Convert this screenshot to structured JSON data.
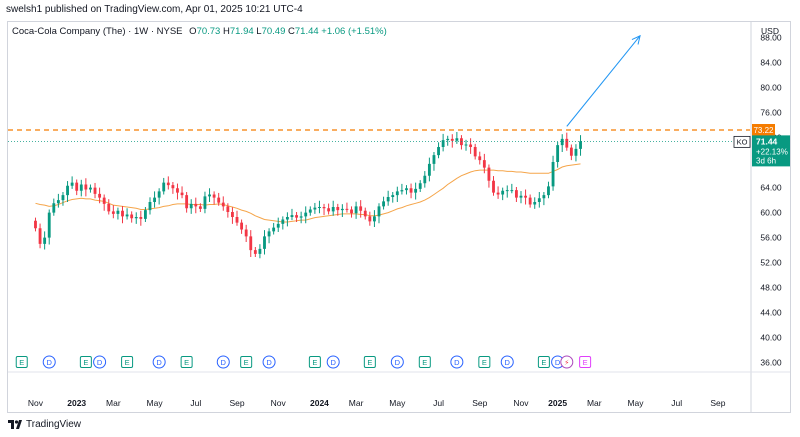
{
  "header": {
    "published": "swelsh1 published on TradingView.com, Apr 01, 2025 10:21 UTC-4"
  },
  "legend": {
    "symbol_desc": "Coca-Cola Company (The) · 1W · NYSE",
    "o_label": "O",
    "o": "70.73",
    "h_label": "H",
    "h": "71.94",
    "l_label": "L",
    "l": "70.49",
    "c_label": "C",
    "c": "71.44",
    "change": "+1.06 (+1.51%)"
  },
  "footer": {
    "brand": "TradingView"
  },
  "colors": {
    "up": "#089981",
    "down": "#f23645",
    "ma": "#f5a54a",
    "resistance": "#f57c00",
    "arrow": "#2196f3",
    "price_tag": "#089981"
  },
  "chart_data": {
    "type": "candlestick",
    "currency": "USD",
    "y_ticks": [
      "88.00",
      "84.00",
      "80.00",
      "76.00",
      "72.00",
      "68.00",
      "64.00",
      "60.00",
      "56.00",
      "52.00",
      "48.00",
      "44.00",
      "40.00",
      "36.00"
    ],
    "x_ticks": [
      "Nov",
      "2023",
      "Mar",
      "May",
      "Jul",
      "Sep",
      "Nov",
      "2024",
      "Mar",
      "May",
      "Jul",
      "Sep",
      "Nov",
      "2025",
      "Mar",
      "May",
      "Jul",
      "Sep"
    ],
    "x_tick_week_index": [
      0,
      9,
      17,
      26,
      35,
      44,
      53,
      62,
      70,
      79,
      88,
      97,
      106,
      114,
      122,
      131,
      140,
      149
    ],
    "ylim": [
      34.5,
      90.5
    ],
    "xlim": [
      -6,
      156
    ],
    "resistance_level": 73.22,
    "resistance_label": "73.22",
    "price_label": {
      "symbol": "KO",
      "price": "71.44",
      "change": "+22.13%",
      "countdown": "3d 6h"
    },
    "closes": [
      57.5,
      55.0,
      56.0,
      60.0,
      61.5,
      62.0,
      62.8,
      64.3,
      64.8,
      63.5,
      64.5,
      63.7,
      64.0,
      63.0,
      62.4,
      61.4,
      60.2,
      59.8,
      60.3,
      59.4,
      59.7,
      59.1,
      59.3,
      59.0,
      60.4,
      61.7,
      62.4,
      63.4,
      64.8,
      64.4,
      63.9,
      63.2,
      62.8,
      60.7,
      61.4,
      61.0,
      60.6,
      62.6,
      62.9,
      62.4,
      61.6,
      61.0,
      60.1,
      59.3,
      58.4,
      57.3,
      56.2,
      54.0,
      53.4,
      54.2,
      56.2,
      57.0,
      57.6,
      58.2,
      58.9,
      59.3,
      59.6,
      59.2,
      59.4,
      60.0,
      60.5,
      60.8,
      60.9,
      60.7,
      60.2,
      60.9,
      60.4,
      60.6,
      60.5,
      59.9,
      61.0,
      60.3,
      59.4,
      58.6,
      59.4,
      61.0,
      61.8,
      62.5,
      62.8,
      63.4,
      63.6,
      63.9,
      63.2,
      63.8,
      64.7,
      65.9,
      67.8,
      69.2,
      70.5,
      71.6,
      71.8,
      71.5,
      71.9,
      70.8,
      70.9,
      70.5,
      69.0,
      68.4,
      67.2,
      65.1,
      63.2,
      62.9,
      63.5,
      63.6,
      63.6,
      62.4,
      62.7,
      62.4,
      61.3,
      61.7,
      62.3,
      62.8,
      64.2,
      68.1,
      70.8,
      71.8,
      70.4,
      69.1,
      70.2,
      71.4
    ],
    "ma_values": [
      61.5,
      61.3,
      61.2,
      61.0,
      61.1,
      61.3,
      61.6,
      61.9,
      62.1,
      62.2,
      62.3,
      62.2,
      62.2,
      62.0,
      61.9,
      61.8,
      61.5,
      61.2,
      61.1,
      61.0,
      60.9,
      60.8,
      60.7,
      60.5,
      60.5,
      60.6,
      60.7,
      60.8,
      61.0,
      61.1,
      61.3,
      61.4,
      61.4,
      61.4,
      61.3,
      61.3,
      61.3,
      61.2,
      61.3,
      61.3,
      61.4,
      61.3,
      61.1,
      60.9,
      60.7,
      60.4,
      60.2,
      59.9,
      59.5,
      59.2,
      58.9,
      58.8,
      58.7,
      58.6,
      58.5,
      58.5,
      58.6,
      58.7,
      58.8,
      58.8,
      59.0,
      59.2,
      59.3,
      59.4,
      59.5,
      59.6,
      59.7,
      59.8,
      59.8,
      59.8,
      59.8,
      59.7,
      59.7,
      59.5,
      59.5,
      59.6,
      59.8,
      60.0,
      60.3,
      60.6,
      60.8,
      61.1,
      61.3,
      61.5,
      61.7,
      62.0,
      62.4,
      62.9,
      63.4,
      63.9,
      64.5,
      65.0,
      65.5,
      65.9,
      66.2,
      66.5,
      66.7,
      66.8,
      66.8,
      66.8,
      66.8,
      66.7,
      66.7,
      66.6,
      66.6,
      66.5,
      66.5,
      66.4,
      66.3,
      66.3,
      66.3,
      66.3,
      66.3,
      66.6,
      66.9,
      67.3,
      67.5,
      67.6,
      67.7,
      67.8
    ],
    "projection_arrow": {
      "from": [
        116,
        73.8
      ],
      "to": [
        132,
        88.3
      ]
    },
    "event_markers": [
      {
        "label": "E",
        "week": -3,
        "style": "earnings"
      },
      {
        "label": "D",
        "week": 3,
        "style": "dividend"
      },
      {
        "label": "E",
        "week": 11,
        "style": "earnings"
      },
      {
        "label": "D",
        "week": 14,
        "style": "dividend"
      },
      {
        "label": "E",
        "week": 20,
        "style": "earnings"
      },
      {
        "label": "D",
        "week": 27,
        "style": "dividend"
      },
      {
        "label": "E",
        "week": 33,
        "style": "earnings"
      },
      {
        "label": "D",
        "week": 41,
        "style": "dividend"
      },
      {
        "label": "E",
        "week": 46,
        "style": "earnings"
      },
      {
        "label": "D",
        "week": 51,
        "style": "dividend"
      },
      {
        "label": "E",
        "week": 61,
        "style": "earnings"
      },
      {
        "label": "D",
        "week": 65,
        "style": "dividend"
      },
      {
        "label": "E",
        "week": 73,
        "style": "earnings"
      },
      {
        "label": "D",
        "week": 79,
        "style": "dividend"
      },
      {
        "label": "E",
        "week": 85,
        "style": "earnings"
      },
      {
        "label": "D",
        "week": 92,
        "style": "dividend"
      },
      {
        "label": "E",
        "week": 98,
        "style": "earnings"
      },
      {
        "label": "D",
        "week": 103,
        "style": "dividend"
      },
      {
        "label": "E",
        "week": 111,
        "style": "earnings"
      },
      {
        "label": "D",
        "week": 114,
        "style": "dividend"
      },
      {
        "label": "⚡",
        "week": 116,
        "style": "split"
      },
      {
        "label": "E",
        "week": 120,
        "style": "future"
      }
    ]
  }
}
